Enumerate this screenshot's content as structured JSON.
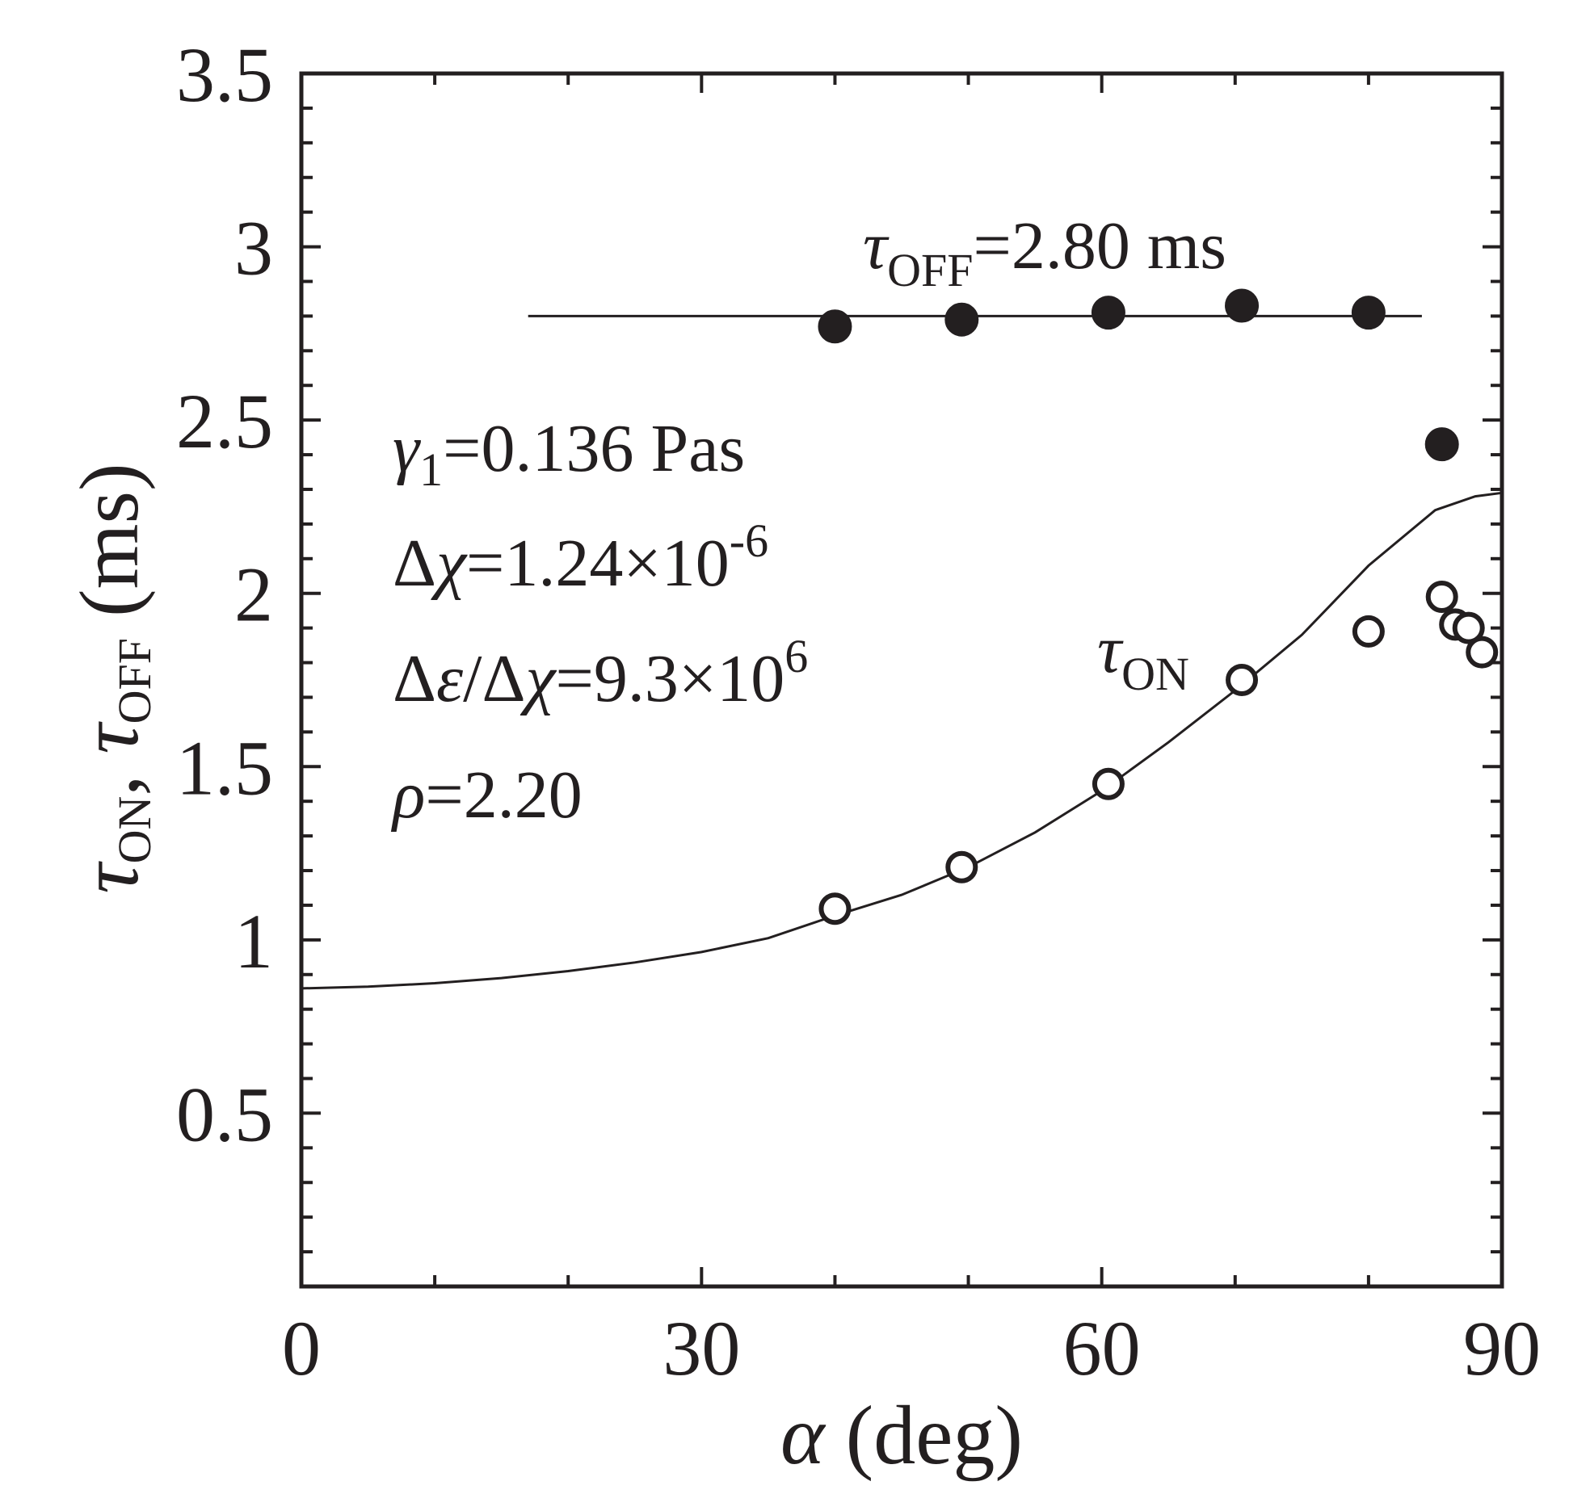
{
  "colors": {
    "ink": "#231f20",
    "background": "#ffffff"
  },
  "chart_data": {
    "type": "scatter",
    "xlabel": {
      "symbol": "α",
      "text": " (deg)"
    },
    "ylabel": {
      "sym1": "τ",
      "sub1": "ON",
      "sep": ", ",
      "sym2": "τ",
      "sub2": "OFF",
      "unit": " (ms)"
    },
    "xlim": [
      0,
      90
    ],
    "ylim": [
      0,
      3.5
    ],
    "xticks": [
      0,
      30,
      60,
      90
    ],
    "xtick_labels": [
      "0",
      "30",
      "60",
      "90"
    ],
    "yticks": [
      0.5,
      1,
      1.5,
      2,
      2.5,
      3,
      3.5
    ],
    "ytick_labels": [
      "0.5",
      "1",
      "1.5",
      "2",
      "2.5",
      "3",
      "3.5"
    ],
    "grid": false,
    "series": [
      {
        "marker": "filled-circle",
        "points": [
          [
            40,
            2.77
          ],
          [
            49.5,
            2.79
          ],
          [
            60.5,
            2.81
          ],
          [
            70.5,
            2.83
          ],
          [
            80,
            2.81
          ],
          [
            85.5,
            2.43
          ]
        ]
      },
      {
        "marker": "open-circle",
        "points": [
          [
            40,
            1.09
          ],
          [
            49.5,
            1.21
          ],
          [
            60.5,
            1.45
          ],
          [
            70.5,
            1.75
          ],
          [
            80,
            1.89
          ],
          [
            85.5,
            1.99
          ],
          [
            86.5,
            1.91
          ],
          [
            87.5,
            1.9
          ],
          [
            88.5,
            1.83
          ]
        ]
      },
      {
        "marker": "line",
        "points": [
          [
            17,
            2.8
          ],
          [
            84,
            2.8
          ]
        ]
      },
      {
        "marker": "line",
        "points": [
          [
            0,
            0.86
          ],
          [
            5,
            0.865
          ],
          [
            10,
            0.875
          ],
          [
            15,
            0.89
          ],
          [
            20,
            0.91
          ],
          [
            25,
            0.935
          ],
          [
            30,
            0.965
          ],
          [
            35,
            1.005
          ],
          [
            40,
            1.07
          ],
          [
            45,
            1.13
          ],
          [
            50,
            1.21
          ],
          [
            55,
            1.31
          ],
          [
            60,
            1.43
          ],
          [
            65,
            1.57
          ],
          [
            70,
            1.72
          ],
          [
            75,
            1.88
          ],
          [
            80,
            2.08
          ],
          [
            85,
            2.24
          ],
          [
            88,
            2.28
          ],
          [
            90,
            2.29
          ]
        ]
      }
    ],
    "annotations": {
      "toff": {
        "sym": "τ",
        "sub": "OFF",
        "rest": "=2.80 ms"
      },
      "ton": {
        "sym": "τ",
        "sub": "ON"
      },
      "params": {
        "gamma": {
          "sym": "γ",
          "sub": "1",
          "rest": "=0.136 Pas"
        },
        "dchi": {
          "pre": "Δ",
          "sym": "χ",
          "rest": "=1.24×10",
          "sup": "-6"
        },
        "ratio": {
          "pre": "Δ",
          "sym1": "ε",
          "mid": "/Δ",
          "sym2": "χ",
          "rest": "=9.3×10",
          "sup": "6"
        },
        "rho": {
          "sym": "ρ",
          "rest": "=2.20"
        }
      }
    }
  }
}
